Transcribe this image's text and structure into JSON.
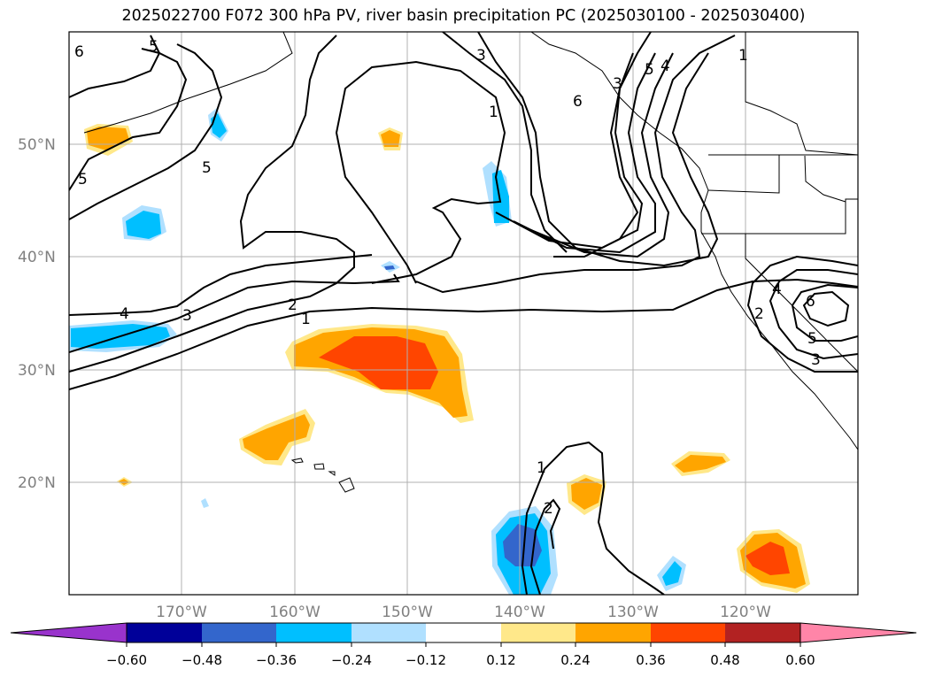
{
  "title": "2025022700 F072 300 hPa PV, river basin precipitation PC (2025030100 - 2025030400)",
  "map": {
    "lat_labels": [
      "50°N",
      "40°N",
      "30°N",
      "20°N"
    ],
    "lon_labels": [
      "170°W",
      "160°W",
      "150°W",
      "140°W",
      "130°W",
      "120°W"
    ],
    "contour_labels": [
      "6",
      "5",
      "5",
      "5",
      "4",
      "3",
      "2",
      "1",
      "3",
      "1",
      "6",
      "3",
      "5",
      "4",
      "1",
      "1",
      "2",
      "4",
      "6",
      "5",
      "3",
      "2"
    ]
  },
  "colorbar": {
    "ticks": [
      "−0.60",
      "−0.48",
      "−0.36",
      "−0.24",
      "−0.12",
      "0.12",
      "0.24",
      "0.36",
      "0.48",
      "0.60"
    ],
    "colors": [
      "#9933cc",
      "#000099",
      "#3366cc",
      "#00bfff",
      "#b0e0ff",
      "#ffffff",
      "#ffe88a",
      "#ffa500",
      "#ff4500",
      "#b22222",
      "#ff85a8"
    ]
  },
  "chart_data": {
    "type": "heatmap",
    "title": "2025022700 F072 300 hPa PV, river basin precipitation PC (2025030100 - 2025030400)",
    "fields": [
      "300 hPa PV (contours)",
      "river basin precipitation PC (shaded)"
    ],
    "lon_range": [
      -180,
      -110
    ],
    "lat_range": [
      10,
      60
    ],
    "colorbar_levels": [
      -0.6,
      -0.48,
      -0.36,
      -0.24,
      -0.12,
      0.12,
      0.24,
      0.36,
      0.48,
      0.6
    ],
    "grid": true
  }
}
